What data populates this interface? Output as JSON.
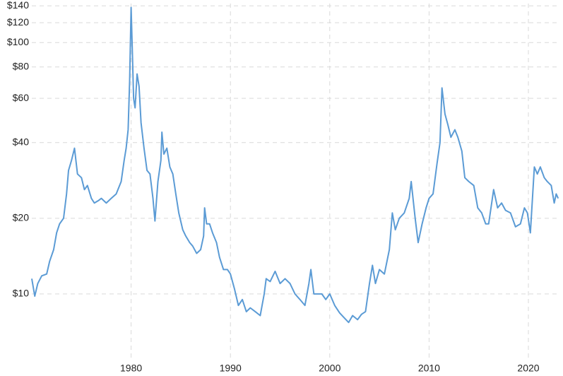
{
  "chart_data": {
    "type": "line",
    "log_y": true,
    "grid": true,
    "x": [
      1970.0,
      1970.3,
      1970.6,
      1971.0,
      1971.5,
      1971.8,
      1972.2,
      1972.5,
      1972.8,
      1973.2,
      1973.5,
      1973.7,
      1974.0,
      1974.3,
      1974.6,
      1975.0,
      1975.3,
      1975.6,
      1976.0,
      1976.3,
      1976.7,
      1977.0,
      1977.5,
      1978.0,
      1978.5,
      1979.0,
      1979.3,
      1979.5,
      1979.7,
      1979.85,
      1980.0,
      1980.1,
      1980.25,
      1980.4,
      1980.6,
      1980.8,
      1981.0,
      1981.3,
      1981.6,
      1981.9,
      1982.2,
      1982.4,
      1982.7,
      1983.0,
      1983.1,
      1983.3,
      1983.6,
      1983.9,
      1984.2,
      1984.5,
      1984.8,
      1985.2,
      1985.5,
      1985.9,
      1986.2,
      1986.6,
      1987.0,
      1987.3,
      1987.4,
      1987.6,
      1987.9,
      1988.2,
      1988.6,
      1988.9,
      1989.3,
      1989.7,
      1990.0,
      1990.4,
      1990.8,
      1991.2,
      1991.6,
      1992.0,
      1992.5,
      1993.0,
      1993.4,
      1993.6,
      1994.0,
      1994.5,
      1995.0,
      1995.5,
      1996.0,
      1996.5,
      1997.0,
      1997.5,
      1997.9,
      1998.1,
      1998.4,
      1998.8,
      1999.2,
      1999.6,
      2000.0,
      2000.5,
      2001.0,
      2001.5,
      2001.9,
      2002.3,
      2002.8,
      2003.2,
      2003.6,
      2004.0,
      2004.3,
      2004.6,
      2005.0,
      2005.5,
      2006.0,
      2006.3,
      2006.6,
      2007.0,
      2007.5,
      2008.0,
      2008.2,
      2008.6,
      2008.9,
      2009.3,
      2009.7,
      2010.0,
      2010.4,
      2010.8,
      2011.1,
      2011.3,
      2011.6,
      2011.9,
      2012.2,
      2012.6,
      2012.9,
      2013.3,
      2013.6,
      2014.0,
      2014.5,
      2014.9,
      2015.3,
      2015.7,
      2016.0,
      2016.5,
      2016.9,
      2017.3,
      2017.7,
      2018.2,
      2018.7,
      2019.2,
      2019.6,
      2019.9,
      2020.2,
      2020.6,
      2020.9,
      2021.2,
      2021.6,
      2021.9,
      2022.3,
      2022.6,
      2022.8,
      2023.0
    ],
    "series": [
      {
        "color": "#5b9bd5",
        "values": [
          11.5,
          9.8,
          11,
          11.8,
          12,
          13.5,
          15,
          17.5,
          19,
          20,
          25,
          31,
          34,
          38,
          30,
          29,
          26,
          27,
          24,
          23,
          23.5,
          24,
          23,
          24,
          25,
          28,
          34,
          38,
          45,
          70,
          138,
          100,
          60,
          55,
          75,
          67,
          48,
          38,
          31,
          30,
          24,
          19.5,
          28,
          34,
          44,
          36,
          38,
          32,
          30,
          25,
          21,
          18,
          17,
          16,
          15.5,
          14.5,
          15,
          17,
          22,
          19,
          19,
          17.5,
          16,
          14,
          12.5,
          12.5,
          12,
          10.5,
          9,
          9.5,
          8.5,
          8.8,
          8.5,
          8.2,
          10,
          11.5,
          11.2,
          12.3,
          11,
          11.5,
          11,
          10,
          9.5,
          9,
          11,
          12.5,
          10,
          10,
          10,
          9.5,
          10,
          9,
          8.4,
          8.0,
          7.7,
          8.2,
          7.9,
          8.3,
          8.5,
          11,
          13,
          11,
          12.5,
          12,
          15,
          21,
          18,
          20,
          21,
          24,
          28,
          20,
          16,
          19,
          22,
          24,
          25,
          33,
          40,
          66,
          52,
          47,
          42,
          45,
          42,
          37,
          29,
          28,
          27,
          22,
          21,
          19,
          19,
          26,
          22,
          23,
          21.5,
          21,
          18.5,
          19,
          22,
          21,
          17.5,
          32,
          30,
          32,
          29,
          28,
          27,
          23,
          25,
          24
        ]
      }
    ],
    "xlim": [
      1970,
      2023.2
    ],
    "xticks": [
      1980,
      1990,
      2000,
      2010,
      2020
    ],
    "ylim": [
      5.8,
      143
    ],
    "yticks": [
      {
        "value": 10,
        "label": "$10"
      },
      {
        "value": 20,
        "label": "$20"
      },
      {
        "value": 40,
        "label": "$40"
      },
      {
        "value": 60,
        "label": "$60"
      },
      {
        "value": 80,
        "label": "$80"
      },
      {
        "value": 100,
        "label": "$100"
      },
      {
        "value": 120,
        "label": "$120"
      },
      {
        "value": 140,
        "label": "$140"
      }
    ]
  }
}
